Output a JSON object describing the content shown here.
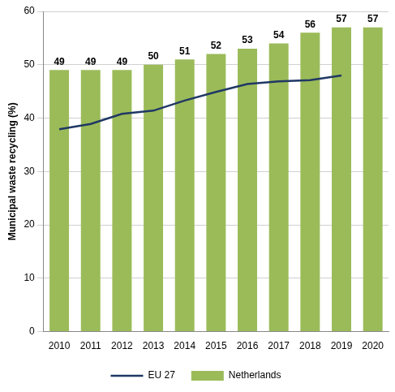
{
  "chart_data": {
    "type": "bar",
    "y_label": "Municipal waste recycling (%)",
    "categories": [
      "2010",
      "2011",
      "2012",
      "2013",
      "2014",
      "2015",
      "2016",
      "2017",
      "2018",
      "2019",
      "2020"
    ],
    "series": [
      {
        "name": "Netherlands",
        "type": "bar",
        "color": "#9bbb59",
        "data_labels": true,
        "values": [
          49,
          49,
          49,
          50,
          51,
          52,
          53,
          54,
          56,
          57,
          57
        ]
      },
      {
        "name": "EU 27",
        "type": "line",
        "color": "#1f3864",
        "marker": "none",
        "line_style": "solid",
        "values": [
          37.9,
          38.9,
          40.8,
          41.4,
          43.3,
          44.9,
          46.4,
          46.9,
          47.1,
          48.0,
          null
        ]
      }
    ],
    "ylim": [
      0,
      60
    ],
    "yticks": [
      0,
      10,
      20,
      30,
      40,
      50,
      60
    ],
    "grid": true,
    "legend": "bottom"
  }
}
